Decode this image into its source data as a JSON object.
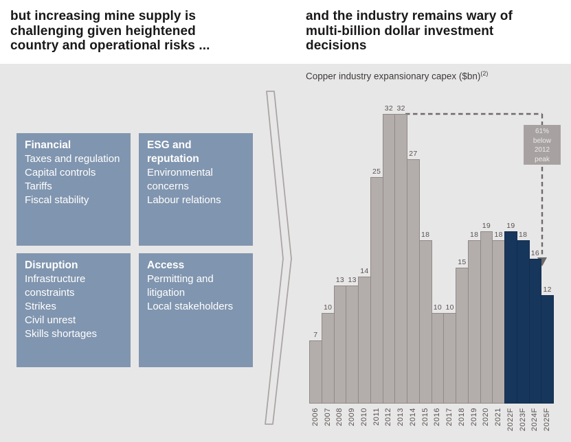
{
  "slide": {
    "left_heading_lines": [
      "but increasing mine supply is",
      "challenging given heightened",
      "country and operational risks ..."
    ],
    "right_heading_lines": [
      "and the industry remains wary of",
      "multi-billion dollar investment",
      "decisions"
    ]
  },
  "risk_boxes": [
    {
      "title": "Financial",
      "items": [
        "Taxes and regulation",
        "Capital controls",
        "Tariffs",
        "Fiscal stability"
      ]
    },
    {
      "title": "ESG and reputation",
      "items": [
        "Environmental concerns",
        "Labour relations"
      ]
    },
    {
      "title": "Disruption",
      "items": [
        "Infrastructure constraints",
        "Strikes",
        "Civil unrest",
        "Skills shortages"
      ]
    },
    {
      "title": "Access",
      "items": [
        "Permitting and litigation",
        "Local stakeholders"
      ]
    }
  ],
  "chart_data": {
    "type": "bar",
    "title": "Copper industry expansionary capex ($bn)",
    "title_footnote_marker": "(2)",
    "categories": [
      "2006",
      "2007",
      "2008",
      "2009",
      "2010",
      "2011",
      "2012",
      "2013",
      "2014",
      "2015",
      "2016",
      "2017",
      "2018",
      "2019",
      "2020",
      "2021",
      "2022F",
      "2023F",
      "2024F",
      "2025F"
    ],
    "values": [
      7,
      10,
      13,
      13,
      14,
      25,
      32,
      32,
      27,
      18,
      10,
      10,
      15,
      18,
      19,
      18,
      19,
      18,
      16,
      12
    ],
    "forecast_from_index": 16,
    "ylim": [
      0,
      34
    ],
    "grid": false,
    "bar_labels_shown": true,
    "legend": "none",
    "annotation": {
      "text": "61% below 2012 peak",
      "lines": [
        "61%",
        "below",
        "2012",
        "peak"
      ],
      "refers_to": "2012 peak of 32"
    }
  },
  "colors": {
    "panel_bg": "#e8e7e7",
    "box_fill": "#8095af",
    "box_text": "#ffffff",
    "bar_fill": "#b3aeab",
    "bar_border": "#8f8a87",
    "forecast_fill": "#17365c",
    "dash_line": "#6e6a69",
    "callout_bg": "#a7a2a1",
    "callout_text": "#eceaea",
    "heading_text": "#191717",
    "label_text": "#57514f"
  }
}
